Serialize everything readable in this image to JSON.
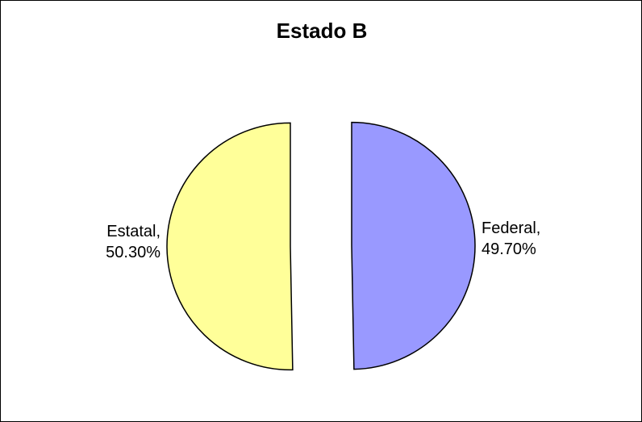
{
  "chart_data": {
    "type": "pie",
    "title": "Estado B",
    "slices": [
      {
        "name": "Federal",
        "value": 49.7,
        "label_name": "Federal,",
        "label_value": "49.70%",
        "color": "#9999ff"
      },
      {
        "name": "Estatal",
        "value": 50.3,
        "label_name": "Estatal,",
        "label_value": "50.30%",
        "color": "#ffff99"
      }
    ],
    "legend": "none",
    "exploded": true,
    "outline_color": "#000000"
  }
}
